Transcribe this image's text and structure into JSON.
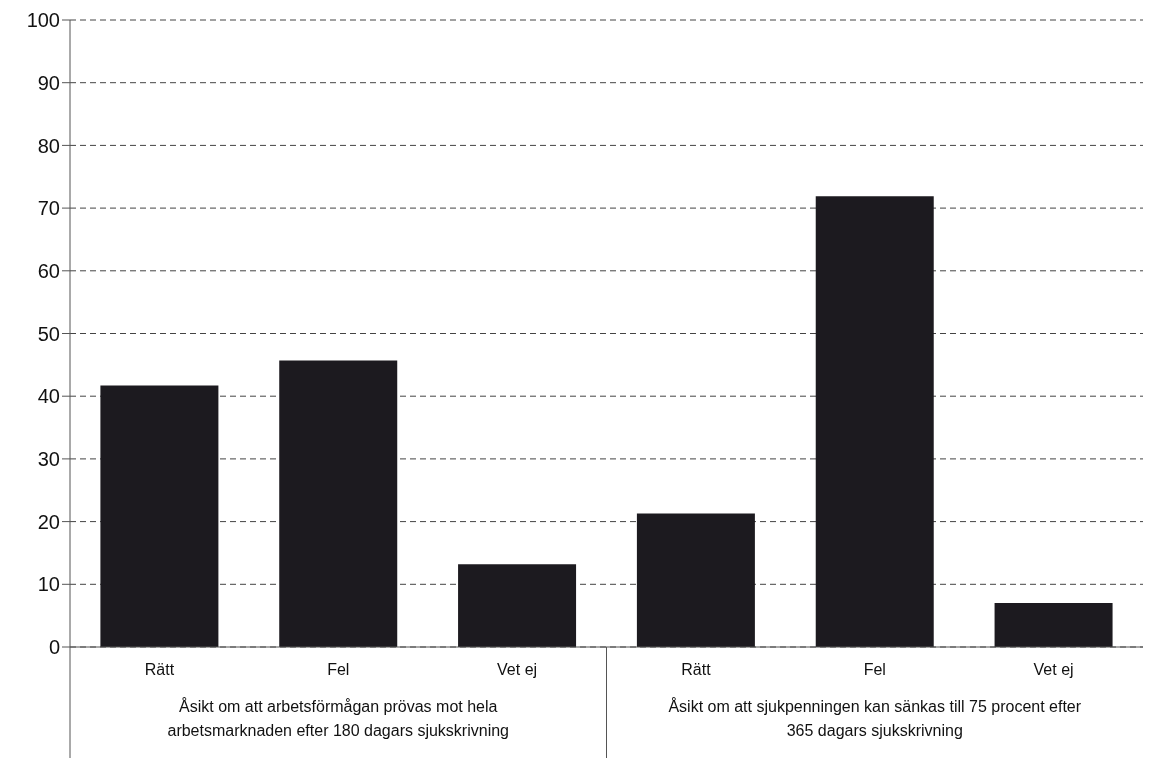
{
  "chart_data": {
    "type": "bar",
    "categories": [
      "Rätt",
      "Fel",
      "Vet ej",
      "Rätt",
      "Fel",
      "Vet ej"
    ],
    "values": [
      41.7,
      45.7,
      13.2,
      21.3,
      71.9,
      7.0
    ],
    "color": "#1c1a1f",
    "ylim": [
      0,
      100
    ],
    "yticks": [
      0,
      10,
      20,
      30,
      40,
      50,
      60,
      70,
      80,
      90,
      100
    ],
    "grid": "y",
    "line_style": "dashed",
    "legend": false,
    "annotations": [
      "Åsikt om att arbetsförmågan prövas mot hela arbetsmarknaden efter 180 dagars sjukskrivning",
      "Åsikt om att sjukpenningen kan sänkas till 75 procent efter 365 dagars sjukskrivning"
    ]
  }
}
